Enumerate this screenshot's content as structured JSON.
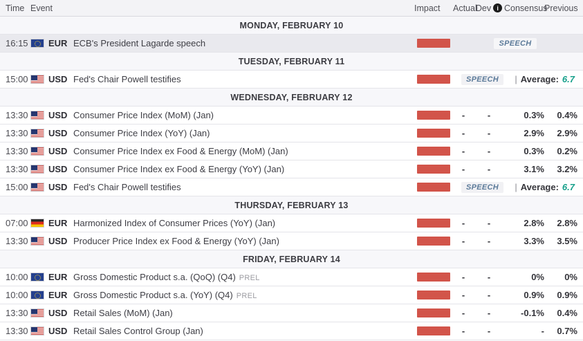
{
  "table_header": {
    "time": "Time",
    "event": "Event",
    "impact": "Impact",
    "actual": "Actual",
    "dev": "Dev",
    "info_icon": "i",
    "consensus": "Consensus",
    "previous": "Previous"
  },
  "speech": {
    "badge": "SPEECH",
    "divider": "|",
    "average_label": "Average:"
  },
  "colors": {
    "impact_bar_high": "#d2544a",
    "average_value_text": "#17a08b",
    "speech_badge_text": "#5b7a99",
    "day_row_bg": "#f7f7fa",
    "highlighted_row_bg": "#e9e9ee",
    "header_row_bg": "#f3f3f6"
  },
  "rows": [
    {
      "type": "day",
      "label": "MONDAY, FEBRUARY 10"
    },
    {
      "type": "event",
      "time": "16:15",
      "flag": "eu",
      "currency": "EUR",
      "event": "ECB's President Lagarde speech",
      "speech": true
    },
    {
      "type": "day",
      "label": "TUESDAY, FEBRUARY 11"
    },
    {
      "type": "event",
      "time": "15:00",
      "flag": "us",
      "currency": "USD",
      "event": "Fed's Chair Powell testifies",
      "speech": true,
      "average": "6.7"
    },
    {
      "type": "day",
      "label": "WEDNESDAY, FEBRUARY 12"
    },
    {
      "type": "event",
      "time": "13:30",
      "flag": "us",
      "currency": "USD",
      "event": "Consumer Price Index (MoM) (Jan)",
      "actual": "-",
      "dev": "-",
      "consensus": "0.3%",
      "previous": "0.4%"
    },
    {
      "type": "event",
      "time": "13:30",
      "flag": "us",
      "currency": "USD",
      "event": "Consumer Price Index (YoY) (Jan)",
      "actual": "-",
      "dev": "-",
      "consensus": "2.9%",
      "previous": "2.9%"
    },
    {
      "type": "event",
      "time": "13:30",
      "flag": "us",
      "currency": "USD",
      "event": "Consumer Price Index ex Food & Energy (MoM) (Jan)",
      "actual": "-",
      "dev": "-",
      "consensus": "0.3%",
      "previous": "0.2%"
    },
    {
      "type": "event",
      "time": "13:30",
      "flag": "us",
      "currency": "USD",
      "event": "Consumer Price Index ex Food & Energy (YoY) (Jan)",
      "actual": "-",
      "dev": "-",
      "consensus": "3.1%",
      "previous": "3.2%"
    },
    {
      "type": "event",
      "time": "15:00",
      "flag": "us",
      "currency": "USD",
      "event": "Fed's Chair Powell testifies",
      "speech": true,
      "average": "6.7"
    },
    {
      "type": "day",
      "label": "THURSDAY, FEBRUARY 13"
    },
    {
      "type": "event",
      "time": "07:00",
      "flag": "de",
      "currency": "EUR",
      "event": "Harmonized Index of Consumer Prices (YoY) (Jan)",
      "actual": "-",
      "dev": "-",
      "consensus": "2.8%",
      "previous": "2.8%"
    },
    {
      "type": "event",
      "time": "13:30",
      "flag": "us",
      "currency": "USD",
      "event": "Producer Price Index ex Food & Energy (YoY) (Jan)",
      "actual": "-",
      "dev": "-",
      "consensus": "3.3%",
      "previous": "3.5%"
    },
    {
      "type": "day",
      "label": "FRIDAY, FEBRUARY 14"
    },
    {
      "type": "event",
      "time": "10:00",
      "flag": "eu",
      "currency": "EUR",
      "event": "Gross Domestic Product s.a. (QoQ) (Q4)",
      "tag": "PREL",
      "actual": "-",
      "dev": "-",
      "consensus": "0%",
      "previous": "0%"
    },
    {
      "type": "event",
      "time": "10:00",
      "flag": "eu",
      "currency": "EUR",
      "event": "Gross Domestic Product s.a. (YoY) (Q4)",
      "tag": "PREL",
      "actual": "-",
      "dev": "-",
      "consensus": "0.9%",
      "previous": "0.9%"
    },
    {
      "type": "event",
      "time": "13:30",
      "flag": "us",
      "currency": "USD",
      "event": "Retail Sales (MoM) (Jan)",
      "actual": "-",
      "dev": "-",
      "consensus": "-0.1%",
      "previous": "0.4%"
    },
    {
      "type": "event",
      "time": "13:30",
      "flag": "us",
      "currency": "USD",
      "event": "Retail Sales Control Group (Jan)",
      "actual": "-",
      "dev": "-",
      "consensus": "-",
      "previous": "0.7%"
    }
  ]
}
